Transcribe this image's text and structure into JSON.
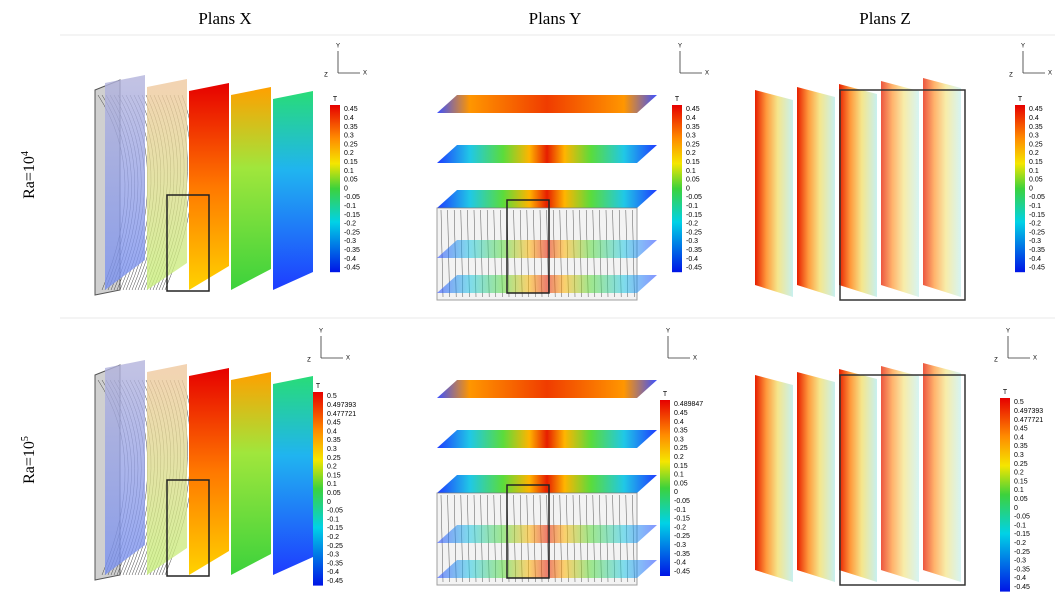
{
  "header": {
    "columns": [
      "Plans X",
      "Plans Y",
      "Plans Z"
    ]
  },
  "rows": [
    {
      "label": "Ra=10",
      "exponent": "4",
      "panels": [
        {
          "axes": [
            "Y",
            "Z",
            "X"
          ],
          "legend": {
            "title": "T",
            "labels": [
              "0.45",
              "0.4",
              "0.35",
              "0.3",
              "0.25",
              "0.2",
              "0.15",
              "0.1",
              "0.05",
              "0",
              "-0.05",
              "-0.1",
              "-0.15",
              "-0.2",
              "-0.25",
              "-0.3",
              "-0.35",
              "-0.4",
              "-0.45"
            ]
          }
        },
        {
          "axes": [
            "Y",
            "X"
          ],
          "legend": {
            "title": "T",
            "labels": [
              "0.45",
              "0.4",
              "0.35",
              "0.3",
              "0.25",
              "0.2",
              "0.15",
              "0.1",
              "0.05",
              "0",
              "-0.05",
              "-0.1",
              "-0.15",
              "-0.2",
              "-0.25",
              "-0.3",
              "-0.35",
              "-0.4",
              "-0.45"
            ]
          }
        },
        {
          "axes": [
            "Y",
            "Z",
            "X"
          ],
          "legend": {
            "title": "T",
            "labels": [
              "0.45",
              "0.4",
              "0.35",
              "0.3",
              "0.25",
              "0.2",
              "0.15",
              "0.1",
              "0.05",
              "0",
              "-0.05",
              "-0.1",
              "-0.15",
              "-0.2",
              "-0.25",
              "-0.3",
              "-0.35",
              "-0.4",
              "-0.45"
            ]
          }
        }
      ]
    },
    {
      "label": "Ra=10",
      "exponent": "5",
      "panels": [
        {
          "axes": [
            "Y",
            "Z",
            "X"
          ],
          "legend": {
            "title": "T",
            "labels": [
              "0.5",
              "0.497393",
              "0.477721",
              "0.45",
              "0.4",
              "0.35",
              "0.3",
              "0.25",
              "0.2",
              "0.15",
              "0.1",
              "0.05",
              "0",
              "-0.05",
              "-0.1",
              "-0.15",
              "-0.2",
              "-0.25",
              "-0.3",
              "-0.35",
              "-0.4",
              "-0.45"
            ]
          }
        },
        {
          "axes": [
            "Y",
            "X"
          ],
          "legend": {
            "title": "T",
            "labels": [
              "0.489847",
              "0.45",
              "0.4",
              "0.35",
              "0.3",
              "0.25",
              "0.2",
              "0.15",
              "0.1",
              "0.05",
              "0",
              "-0.05",
              "-0.1",
              "-0.15",
              "-0.2",
              "-0.25",
              "-0.3",
              "-0.35",
              "-0.4",
              "-0.45"
            ]
          }
        },
        {
          "axes": [
            "Y",
            "Z",
            "X"
          ],
          "legend": {
            "title": "T",
            "labels": [
              "0.5",
              "0.497393",
              "0.477721",
              "0.45",
              "0.4",
              "0.35",
              "0.3",
              "0.25",
              "0.2",
              "0.15",
              "0.1",
              "0.05",
              "0",
              "-0.05",
              "-0.1",
              "-0.15",
              "-0.2",
              "-0.25",
              "-0.3",
              "-0.35",
              "-0.4",
              "-0.45"
            ]
          }
        }
      ]
    }
  ]
}
